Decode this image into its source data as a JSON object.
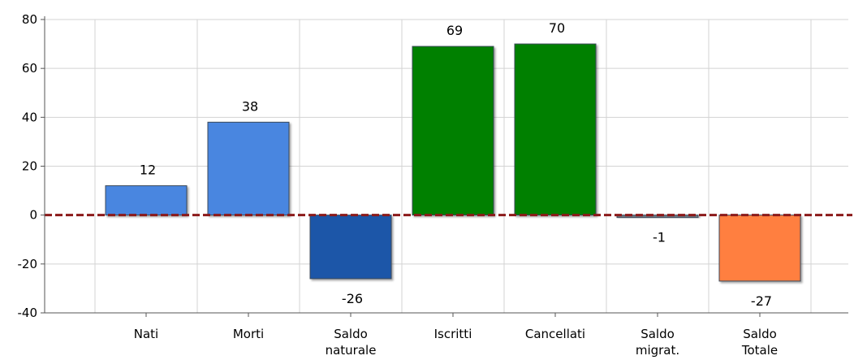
{
  "chart_data": {
    "type": "bar",
    "categories": [
      [
        "Nati"
      ],
      [
        "Morti"
      ],
      [
        "Saldo",
        "naturale"
      ],
      [
        "Iscritti"
      ],
      [
        "Cancellati"
      ],
      [
        "Saldo",
        "migrat."
      ],
      [
        "Saldo",
        "Totale"
      ]
    ],
    "values": [
      12,
      38,
      -26,
      69,
      70,
      -1,
      -27
    ],
    "data_labels": [
      "12",
      "38",
      "-26",
      "69",
      "70",
      "-1",
      "-27"
    ],
    "bar_colors": [
      "#4a86e0",
      "#4a86e0",
      "#1f56a8",
      "#008000",
      "#008000",
      "#6e7780",
      "#ff7f3f"
    ],
    "y_ticks": [
      "-40",
      "-20",
      "0",
      "20",
      "40",
      "60",
      "80"
    ],
    "ylim": [
      -40,
      80
    ],
    "grid": true,
    "zero_line_color": "#8b1a1a",
    "title": "",
    "xlabel": "",
    "ylabel": ""
  }
}
